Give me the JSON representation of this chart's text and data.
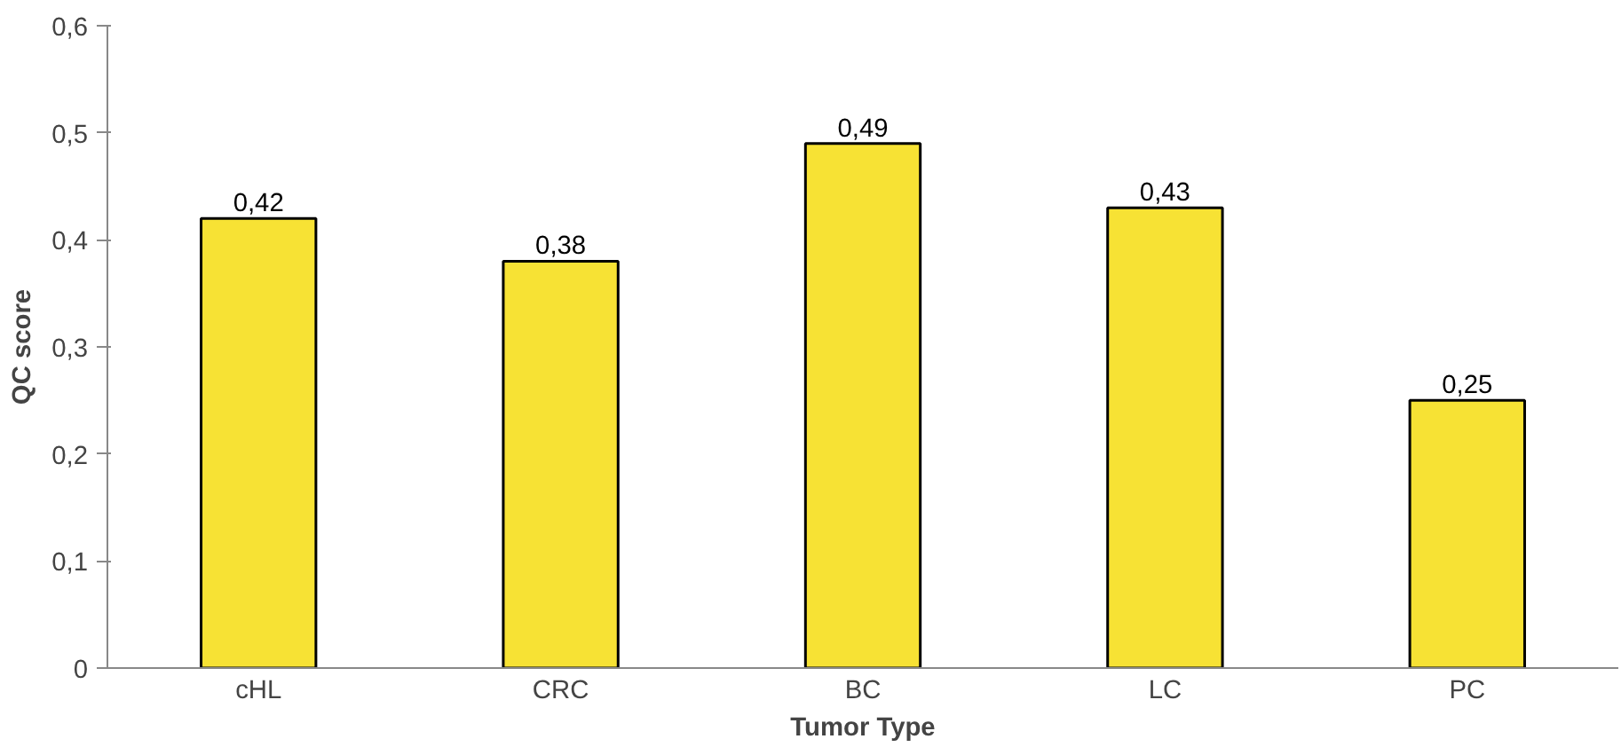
{
  "chart_data": {
    "type": "bar",
    "xlabel": "Tumor Type",
    "ylabel": "QC score",
    "categories": [
      "cHL",
      "CRC",
      "BC",
      "LC",
      "PC"
    ],
    "values": [
      0.42,
      0.38,
      0.49,
      0.43,
      0.25
    ],
    "value_labels": [
      "0,42",
      "0,38",
      "0,49",
      "0,43",
      "0,25"
    ],
    "color": "#f7e234",
    "ylim": [
      0,
      0.6
    ],
    "yticks": [
      0,
      {
        "value": 0.1,
        "label": "0,1"
      },
      {
        "value": 0.2,
        "label": "0,2"
      },
      {
        "value": 0.3,
        "label": "0,3"
      },
      {
        "value": 0.4,
        "label": "0,4"
      },
      {
        "value": 0.5,
        "label": "0,5"
      },
      {
        "value": 0.6,
        "label": "0,6"
      }
    ],
    "grid": false
  }
}
